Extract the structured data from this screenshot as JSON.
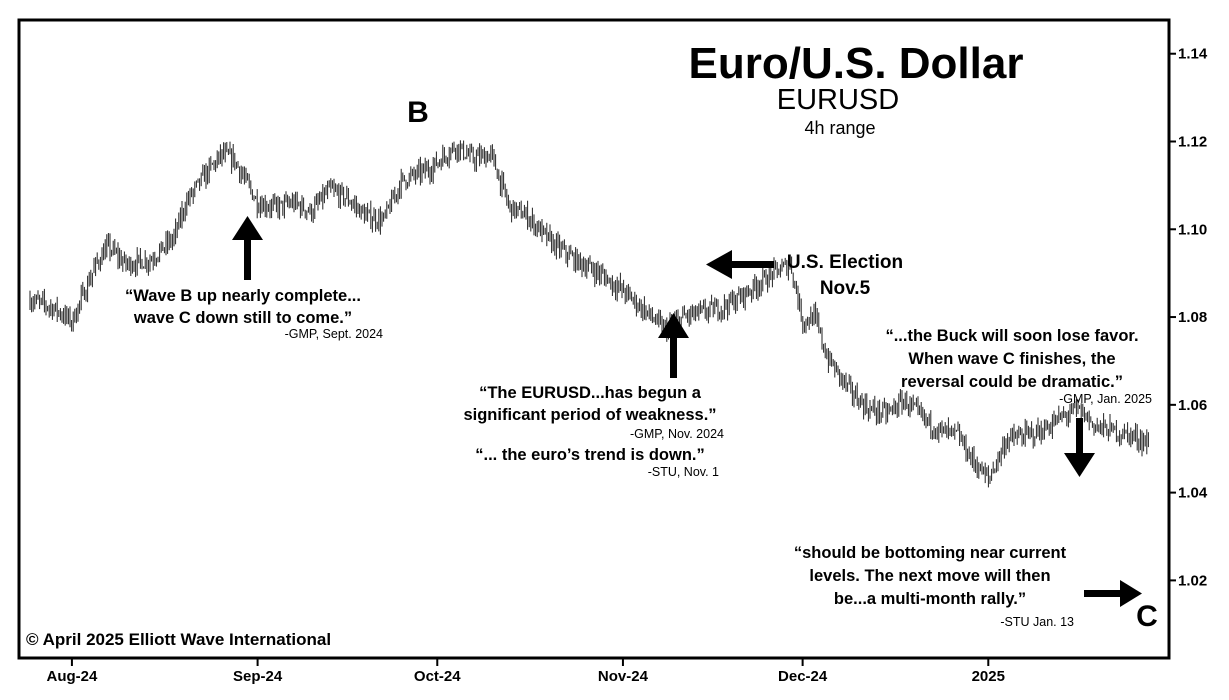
{
  "chart_data": {
    "type": "bar",
    "style": "ohlc-4h-range",
    "title": "Euro/U.S. Dollar",
    "subtitle": "EURUSD",
    "subtitle2": "4h range",
    "ylim": [
      1.003,
      1.147
    ],
    "y_ticks": [
      "1.14",
      "1.12",
      "1.10",
      "1.08",
      "1.06",
      "1.04",
      "1.02"
    ],
    "y_tick_values": [
      1.14,
      1.12,
      1.1,
      1.08,
      1.06,
      1.04,
      1.02
    ],
    "x_ticks": [
      "Aug-24",
      "Sep-24",
      "Oct-24",
      "Nov-24",
      "Dec-24",
      "2025"
    ],
    "x_tick_dates": [
      "2024-08-01",
      "2024-09-01",
      "2024-10-01",
      "2024-11-01",
      "2024-12-01",
      "2025-01-01"
    ],
    "x_range": [
      "2024-07-25",
      "2025-01-28"
    ],
    "price_path": [
      {
        "date": "2024-07-25",
        "value": 1.084
      },
      {
        "date": "2024-07-29",
        "value": 1.082
      },
      {
        "date": "2024-08-01",
        "value": 1.079
      },
      {
        "date": "2024-08-05",
        "value": 1.092
      },
      {
        "date": "2024-08-07",
        "value": 1.096
      },
      {
        "date": "2024-08-10",
        "value": 1.092
      },
      {
        "date": "2024-08-14",
        "value": 1.093
      },
      {
        "date": "2024-08-18",
        "value": 1.098
      },
      {
        "date": "2024-08-20",
        "value": 1.106
      },
      {
        "date": "2024-08-23",
        "value": 1.112
      },
      {
        "date": "2024-08-26",
        "value": 1.117
      },
      {
        "date": "2024-08-28",
        "value": 1.116
      },
      {
        "date": "2024-09-01",
        "value": 1.106
      },
      {
        "date": "2024-09-04",
        "value": 1.105
      },
      {
        "date": "2024-09-07",
        "value": 1.106
      },
      {
        "date": "2024-09-10",
        "value": 1.104
      },
      {
        "date": "2024-09-13",
        "value": 1.109
      },
      {
        "date": "2024-09-16",
        "value": 1.107
      },
      {
        "date": "2024-09-19",
        "value": 1.103
      },
      {
        "date": "2024-09-22",
        "value": 1.102
      },
      {
        "date": "2024-09-25",
        "value": 1.111
      },
      {
        "date": "2024-09-30",
        "value": 1.114
      },
      {
        "date": "2024-10-04",
        "value": 1.119
      },
      {
        "date": "2024-10-07",
        "value": 1.116
      },
      {
        "date": "2024-10-10",
        "value": 1.117
      },
      {
        "date": "2024-10-13",
        "value": 1.105
      },
      {
        "date": "2024-10-16",
        "value": 1.103
      },
      {
        "date": "2024-10-20",
        "value": 1.097
      },
      {
        "date": "2024-10-24",
        "value": 1.093
      },
      {
        "date": "2024-10-28",
        "value": 1.09
      },
      {
        "date": "2024-11-01",
        "value": 1.086
      },
      {
        "date": "2024-11-05",
        "value": 1.081
      },
      {
        "date": "2024-11-08",
        "value": 1.077
      },
      {
        "date": "2024-11-11",
        "value": 1.08
      },
      {
        "date": "2024-11-14",
        "value": 1.081
      },
      {
        "date": "2024-11-17",
        "value": 1.082
      },
      {
        "date": "2024-11-20",
        "value": 1.084
      },
      {
        "date": "2024-11-23",
        "value": 1.087
      },
      {
        "date": "2024-11-26",
        "value": 1.09
      },
      {
        "date": "2024-11-29",
        "value": 1.092
      },
      {
        "date": "2024-12-01",
        "value": 1.079
      },
      {
        "date": "2024-12-03",
        "value": 1.08
      },
      {
        "date": "2024-12-05",
        "value": 1.071
      },
      {
        "date": "2024-12-07",
        "value": 1.067
      },
      {
        "date": "2024-12-09",
        "value": 1.063
      },
      {
        "date": "2024-12-12",
        "value": 1.059
      },
      {
        "date": "2024-12-15",
        "value": 1.058
      },
      {
        "date": "2024-12-18",
        "value": 1.061
      },
      {
        "date": "2024-12-21",
        "value": 1.057
      },
      {
        "date": "2024-12-24",
        "value": 1.054
      },
      {
        "date": "2024-12-27",
        "value": 1.053
      },
      {
        "date": "2024-12-29",
        "value": 1.048
      },
      {
        "date": "2025-01-01",
        "value": 1.043
      },
      {
        "date": "2025-01-04",
        "value": 1.052
      },
      {
        "date": "2025-01-07",
        "value": 1.053
      },
      {
        "date": "2025-01-10",
        "value": 1.054
      },
      {
        "date": "2025-01-13",
        "value": 1.057
      },
      {
        "date": "2025-01-16",
        "value": 1.059
      },
      {
        "date": "2025-01-19",
        "value": 1.055
      },
      {
        "date": "2025-01-22",
        "value": 1.054
      },
      {
        "date": "2025-01-25",
        "value": 1.053
      },
      {
        "date": "2025-01-28",
        "value": 1.051
      }
    ],
    "annotations": {
      "wave_b": "B",
      "wave_c": "C",
      "election_line1": "U.S. Election",
      "election_line2": "Nov.5",
      "q1_line1": "“Wave B up nearly complete...",
      "q1_line2": "wave C down still to come.”",
      "q1_attr": "-GMP, Sept. 2024",
      "q2_line1": "“The EURUSD...has begun a",
      "q2_line2": "significant period of weakness.”",
      "q2_attr": "-GMP, Nov. 2024",
      "q3_line1": "“... the euro’s trend is down.”",
      "q3_attr": "-STU, Nov. 1",
      "q4_line1": "“...the Buck will soon lose favor.",
      "q4_line2": "When wave C finishes, the",
      "q4_line3": "reversal could be dramatic.”",
      "q4_attr": "-GMP, Jan. 2025",
      "q5_line1": "“should be bottoming near current",
      "q5_line2": "levels. The next move will then",
      "q5_line3": "be...a multi-month rally.”",
      "q5_attr": "-STU Jan. 13"
    },
    "copyright": "© April 2025 Elliott Wave International",
    "grid": false,
    "legend": "none"
  }
}
